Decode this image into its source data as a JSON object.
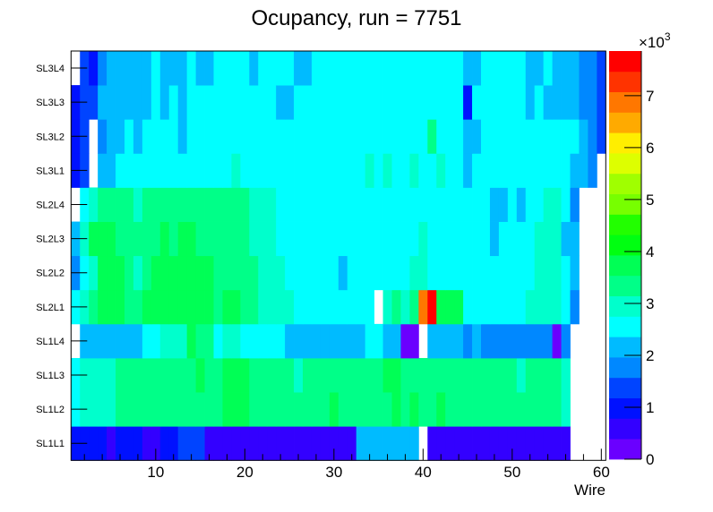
{
  "chart_data": {
    "type": "heatmap",
    "title": "Ocupancy, run = 7751",
    "xlabel": "Wire",
    "ylabel": "",
    "xlim": [
      0.5,
      60.5
    ],
    "x_ticks": [
      "10",
      "20",
      "30",
      "40",
      "50",
      "60"
    ],
    "x_tick_values": [
      10,
      20,
      30,
      40,
      50,
      60
    ],
    "zlim": [
      0,
      7860
    ],
    "z_multiplier_label": "×10",
    "z_multiplier_exp": "3",
    "z_ticks": [
      "0",
      "1",
      "2",
      "3",
      "4",
      "5",
      "6",
      "7"
    ],
    "z_tick_values": [
      0,
      1000,
      2000,
      3000,
      4000,
      5000,
      6000,
      7000
    ],
    "palette": [
      "#6a00ff",
      "#3300ff",
      "#0011ff",
      "#0044ff",
      "#0088ff",
      "#00bbff",
      "#00ffff",
      "#00ffcc",
      "#00ff88",
      "#00ff55",
      "#00ff11",
      "#22ff00",
      "#77ff00",
      "#a0ff00",
      "#ddff00",
      "#ffee00",
      "#ffaa00",
      "#ff7700",
      "#ff3300",
      "#ff0000"
    ],
    "rows": [
      "SL1L1",
      "SL1L2",
      "SL1L3",
      "SL1L4",
      "SL2L1",
      "SL2L2",
      "SL2L3",
      "SL2L4",
      "SL3L1",
      "SL3L2",
      "SL3L3",
      "SL3L4"
    ],
    "values": [
      [
        983,
        983,
        983,
        983,
        590,
        983,
        983,
        983,
        590,
        590,
        983,
        983,
        1376,
        1376,
        1376,
        590,
        590,
        590,
        590,
        590,
        590,
        590,
        590,
        590,
        590,
        590,
        590,
        590,
        590,
        590,
        590,
        590,
        2162,
        2162,
        2162,
        2162,
        2162,
        2162,
        2162,
        0,
        590,
        590,
        590,
        590,
        590,
        590,
        590,
        590,
        590,
        590,
        590,
        590,
        590,
        590,
        590,
        590,
        0,
        0,
        0,
        0
      ],
      [
        2555,
        2948,
        2948,
        2948,
        2948,
        3341,
        3341,
        3341,
        3341,
        3341,
        3341,
        3341,
        3341,
        3341,
        3341,
        3341,
        3341,
        3734,
        3734,
        3734,
        3341,
        3341,
        3341,
        3341,
        3341,
        3341,
        3341,
        3341,
        3341,
        3734,
        3341,
        3341,
        3341,
        3341,
        3341,
        3341,
        3734,
        3341,
        3734,
        3341,
        3341,
        3734,
        3341,
        3341,
        3341,
        3341,
        3341,
        3341,
        3341,
        3341,
        3341,
        3341,
        3341,
        3341,
        3341,
        2948,
        0,
        0,
        0,
        0
      ],
      [
        2555,
        2948,
        2948,
        2948,
        2948,
        3341,
        3341,
        3341,
        3341,
        3341,
        3341,
        3341,
        3341,
        3341,
        3734,
        3341,
        3341,
        3734,
        3734,
        3734,
        3341,
        3341,
        3341,
        3341,
        3341,
        2948,
        3341,
        3341,
        3341,
        3341,
        3341,
        3341,
        3341,
        3341,
        3341,
        3734,
        3734,
        3341,
        3341,
        3341,
        3341,
        3341,
        3341,
        3341,
        3341,
        3341,
        3341,
        3341,
        3341,
        3341,
        2948,
        3341,
        3341,
        3341,
        3341,
        2948,
        0,
        0,
        0,
        0
      ],
      [
        0,
        2162,
        2162,
        2162,
        2162,
        2162,
        2162,
        2162,
        2555,
        2555,
        2948,
        2948,
        2948,
        3734,
        3341,
        3341,
        2555,
        2948,
        2948,
        2555,
        2555,
        2555,
        2555,
        2555,
        2162,
        2162,
        2162,
        2162,
        2162,
        2162,
        2162,
        2162,
        2162,
        2555,
        2555,
        2162,
        2162,
        197,
        197,
        0,
        2162,
        2162,
        2162,
        2162,
        1769,
        2162,
        1769,
        1769,
        1769,
        1769,
        1769,
        1769,
        1769,
        1769,
        197,
        1769,
        0,
        0,
        0,
        0
      ],
      [
        2555,
        2948,
        3341,
        3734,
        3734,
        3734,
        3341,
        3341,
        3734,
        3734,
        3734,
        3734,
        3734,
        3734,
        3734,
        3734,
        3341,
        3734,
        3734,
        3341,
        3341,
        2948,
        2948,
        2948,
        2948,
        2555,
        2555,
        2555,
        2555,
        2555,
        2555,
        2555,
        2555,
        2555,
        0,
        2948,
        3341,
        2948,
        3341,
        6878,
        7664,
        3734,
        3734,
        3734,
        2555,
        2555,
        2555,
        2555,
        2555,
        2555,
        2555,
        2948,
        2948,
        2948,
        2948,
        2555,
        1769,
        0,
        0,
        0
      ],
      [
        1769,
        2555,
        2948,
        3734,
        3734,
        3734,
        3341,
        2948,
        3341,
        3734,
        3734,
        3734,
        3734,
        3734,
        3734,
        3734,
        3341,
        3341,
        3341,
        3341,
        3341,
        2948,
        2948,
        2948,
        2555,
        2555,
        2555,
        2555,
        2555,
        2555,
        2162,
        2555,
        2555,
        2555,
        2555,
        2555,
        2555,
        2555,
        2948,
        2948,
        2555,
        2555,
        2555,
        2555,
        2555,
        2555,
        2555,
        2555,
        2555,
        2555,
        2555,
        2555,
        2948,
        2948,
        2948,
        2555,
        2162,
        0,
        0,
        0
      ],
      [
        2162,
        2948,
        3734,
        3734,
        3734,
        3341,
        3341,
        3341,
        3341,
        3341,
        3734,
        3341,
        3734,
        3734,
        3341,
        3341,
        3341,
        3341,
        3341,
        3341,
        2948,
        2948,
        2948,
        2555,
        2555,
        2555,
        2555,
        2555,
        2555,
        2555,
        2555,
        2555,
        2555,
        2555,
        2555,
        2555,
        2555,
        2555,
        2555,
        2948,
        2555,
        2555,
        2555,
        2555,
        2555,
        2555,
        2555,
        2162,
        2555,
        2555,
        2555,
        2555,
        2948,
        2948,
        2948,
        2162,
        2162,
        0,
        0,
        0
      ],
      [
        0,
        2555,
        2948,
        3341,
        3341,
        3341,
        3341,
        2948,
        3341,
        3341,
        3341,
        3341,
        3341,
        3341,
        3341,
        3341,
        3341,
        3341,
        3341,
        3341,
        2948,
        2948,
        2948,
        2555,
        2555,
        2555,
        2555,
        2555,
        2555,
        2555,
        2555,
        2555,
        2555,
        2555,
        2555,
        2555,
        2555,
        2555,
        2555,
        2555,
        2555,
        2555,
        2555,
        2555,
        2555,
        2555,
        2555,
        2162,
        2162,
        2555,
        2162,
        2555,
        2555,
        2948,
        2948,
        2555,
        1769,
        0,
        0,
        0
      ],
      [
        983,
        1376,
        0,
        2162,
        2162,
        2555,
        2555,
        2555,
        2555,
        2555,
        2555,
        2555,
        2555,
        2555,
        2555,
        2555,
        2555,
        2555,
        2948,
        2555,
        2555,
        2555,
        2555,
        2555,
        2555,
        2555,
        2555,
        2555,
        2555,
        2555,
        2555,
        2555,
        2555,
        2948,
        2555,
        2948,
        2555,
        2555,
        2948,
        2555,
        2555,
        2948,
        2555,
        2555,
        2162,
        2555,
        2555,
        2555,
        2555,
        2555,
        2555,
        2555,
        2555,
        2555,
        2555,
        2555,
        2162,
        2162,
        1769,
        0
      ],
      [
        983,
        1376,
        0,
        1769,
        2162,
        2162,
        2555,
        2162,
        2555,
        2555,
        2555,
        2555,
        2162,
        2555,
        2555,
        2555,
        2555,
        2555,
        2555,
        2555,
        2555,
        2555,
        2555,
        2555,
        2555,
        2555,
        2555,
        2555,
        2555,
        2555,
        2555,
        2555,
        2555,
        2555,
        2555,
        2555,
        2555,
        2555,
        2555,
        2555,
        3341,
        2555,
        2555,
        2555,
        2162,
        2162,
        2555,
        2555,
        2555,
        2555,
        2555,
        2555,
        2555,
        2555,
        2555,
        2555,
        2555,
        2162,
        1769,
        1376
      ],
      [
        983,
        1376,
        1376,
        2162,
        2162,
        2162,
        2162,
        2162,
        2162,
        2555,
        2162,
        2555,
        2162,
        2555,
        2555,
        2555,
        2555,
        2555,
        2555,
        2555,
        2555,
        2555,
        2555,
        2162,
        2162,
        2555,
        2555,
        2555,
        2555,
        2555,
        2555,
        2555,
        2555,
        2555,
        2555,
        2555,
        2555,
        2555,
        2555,
        2555,
        2555,
        2555,
        2555,
        2555,
        983,
        2555,
        2555,
        2555,
        2555,
        2555,
        2555,
        2162,
        2555,
        2162,
        2162,
        2162,
        2162,
        1769,
        1769,
        1376
      ],
      [
        0,
        1376,
        983,
        1769,
        2162,
        2162,
        2162,
        2162,
        2162,
        2555,
        2162,
        2162,
        2162,
        2555,
        2162,
        2162,
        2555,
        2555,
        2555,
        2555,
        2162,
        2555,
        2555,
        2555,
        2555,
        2162,
        2162,
        2555,
        2555,
        2555,
        2555,
        2555,
        2555,
        2555,
        2555,
        2555,
        2555,
        2555,
        2555,
        2555,
        2555,
        2555,
        2555,
        2555,
        2162,
        2162,
        2555,
        2555,
        2555,
        2555,
        2555,
        2162,
        2162,
        2555,
        2162,
        2162,
        2162,
        1769,
        1769,
        1376
      ]
    ]
  }
}
